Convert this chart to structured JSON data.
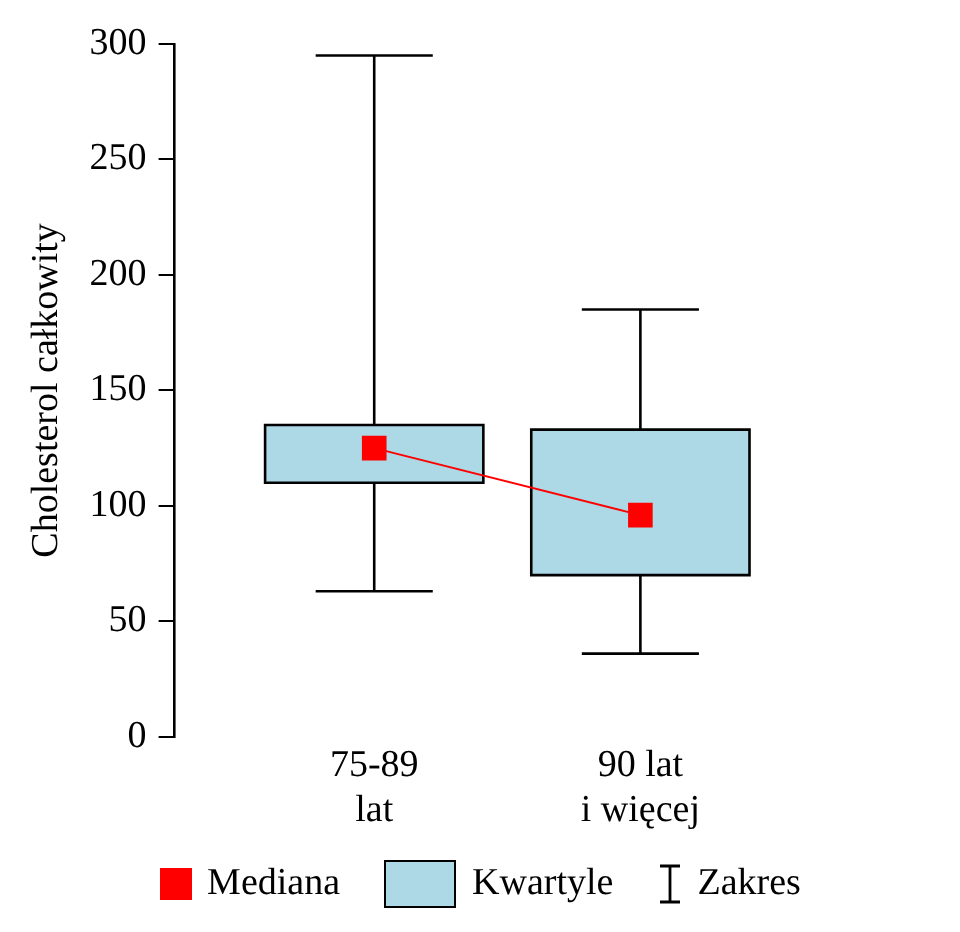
{
  "chart_data": {
    "type": "box",
    "ylabel": "Cholesterol całkowity",
    "categories": [
      "75-89\nlat",
      "90 lat\ni więcej"
    ],
    "ylim": [
      0,
      300
    ],
    "yticks": [
      0,
      50,
      100,
      150,
      200,
      250,
      300
    ],
    "grid": false,
    "legend": "bottom",
    "series": [
      {
        "name": "Kwartyle",
        "type": "box",
        "color": "#add8e6",
        "boxes": [
          {
            "low": 63,
            "q1": 110,
            "q3": 135,
            "high": 295
          },
          {
            "low": 36,
            "q1": 70,
            "q3": 133,
            "high": 185
          }
        ]
      },
      {
        "name": "Mediana",
        "type": "line",
        "color": "#ff0000",
        "marker": "square",
        "values": [
          125,
          96
        ]
      }
    ],
    "annotations": [
      "Zakres"
    ]
  }
}
